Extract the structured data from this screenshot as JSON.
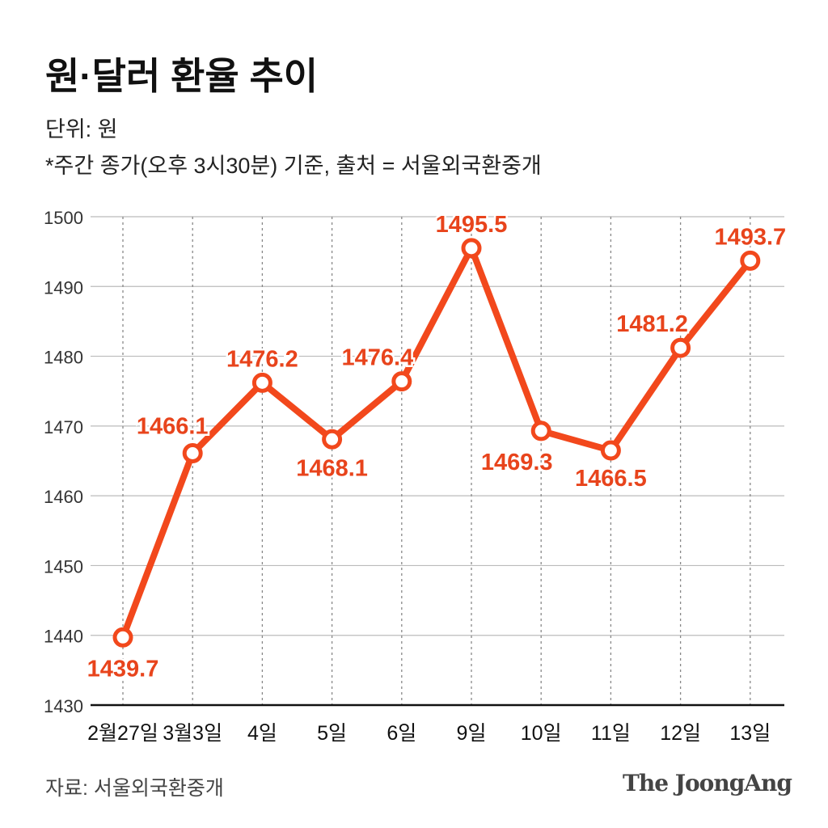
{
  "header": {
    "title": "원·달러 환율 추이",
    "unit": "단위: 원",
    "note": "*주간 종가(오후 3시30분) 기준, 출처 = 서울외국환중개"
  },
  "footer": {
    "source": "자료: 서울외국환중개",
    "logo": "The JoongAng"
  },
  "colors": {
    "line": "#f2481c",
    "label": "#e8441c"
  },
  "chart_data": {
    "type": "line",
    "title": "원·달러 환율 추이",
    "ylabel": "원",
    "categories": [
      "2월27일",
      "3월3일",
      "4일",
      "5일",
      "6일",
      "9일",
      "10일",
      "11일",
      "12일",
      "13일"
    ],
    "values": [
      1439.7,
      1466.1,
      1476.2,
      1468.1,
      1476.4,
      1495.5,
      1469.3,
      1466.5,
      1481.2,
      1493.7
    ],
    "labels": [
      "1439.7",
      "1466.1",
      "1476.2",
      "1468.1",
      "1476.4",
      "1495.5",
      "1469.3",
      "1466.5",
      "1481.2",
      "1493.7"
    ],
    "ylim": [
      1430,
      1500
    ],
    "yticks": [
      "1430",
      "1440",
      "1450",
      "1460",
      "1470",
      "1480",
      "1490",
      "1500"
    ],
    "grid": true
  }
}
